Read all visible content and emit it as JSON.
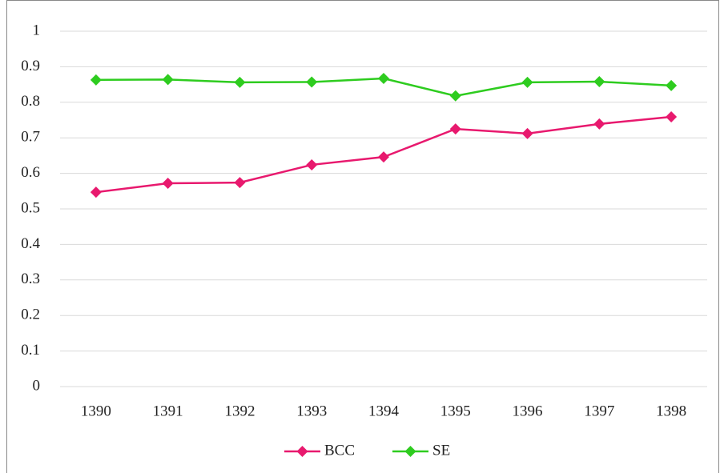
{
  "chart_data": {
    "type": "line",
    "categories": [
      "1390",
      "1391",
      "1392",
      "1393",
      "1394",
      "1395",
      "1396",
      "1397",
      "1398"
    ],
    "series": [
      {
        "name": "BCC",
        "color": "#e8196e",
        "values": [
          0.547,
          0.572,
          0.574,
          0.624,
          0.646,
          0.725,
          0.712,
          0.739,
          0.759
        ]
      },
      {
        "name": "SE",
        "color": "#2ecc1f",
        "values": [
          0.863,
          0.864,
          0.856,
          0.857,
          0.867,
          0.818,
          0.856,
          0.858,
          0.847
        ]
      }
    ],
    "ylim": [
      0,
      1
    ],
    "yticks": [
      0,
      0.1,
      0.2,
      0.3,
      0.4,
      0.5,
      0.6,
      0.7,
      0.8,
      0.9,
      1
    ],
    "grid": true,
    "legend": "bottom"
  }
}
